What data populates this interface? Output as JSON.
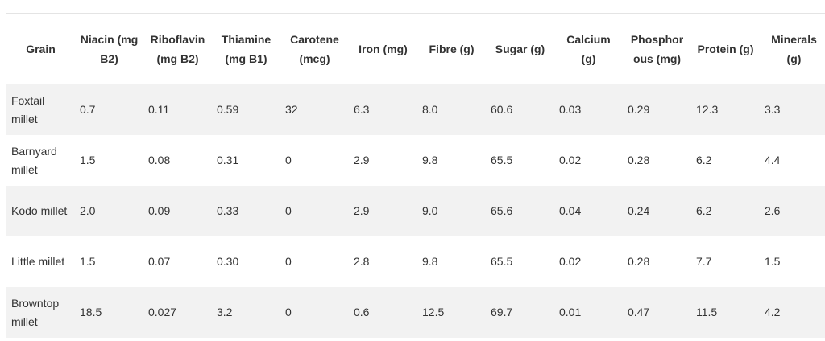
{
  "table": {
    "headers": [
      "Grain",
      "Niacin (mg B2)",
      "Riboflavin (mg B2)",
      "Thiamine (mg B1)",
      "Carotene (mcg)",
      "Iron (mg)",
      "Fibre (g)",
      "Sugar (g)",
      "Calcium (g)",
      "Phosphorous (mg)",
      "Protein (g)",
      "Minerals (g)"
    ],
    "rows": [
      [
        "Foxtail millet",
        "0.7",
        "0.11",
        "0.59",
        "32",
        "6.3",
        "8.0",
        "60.6",
        "0.03",
        "0.29",
        "12.3",
        "3.3"
      ],
      [
        "Barnyard millet",
        "1.5",
        "0.08",
        "0.31",
        "0",
        "2.9",
        "9.8",
        "65.5",
        "0.02",
        "0.28",
        "6.2",
        "4.4"
      ],
      [
        "Kodo millet",
        "2.0",
        "0.09",
        "0.33",
        "0",
        "2.9",
        "9.0",
        "65.6",
        "0.04",
        "0.24",
        "6.2",
        "2.6"
      ],
      [
        "Little millet",
        "1.5",
        "0.07",
        "0.30",
        "0",
        "2.8",
        "9.8",
        "65.5",
        "0.02",
        "0.28",
        "7.7",
        "1.5"
      ],
      [
        "Browntop millet",
        "18.5",
        "0.027",
        "3.2",
        "0",
        "0.6",
        "12.5",
        "69.7",
        "0.01",
        "0.47",
        "11.5",
        "4.2"
      ]
    ]
  }
}
